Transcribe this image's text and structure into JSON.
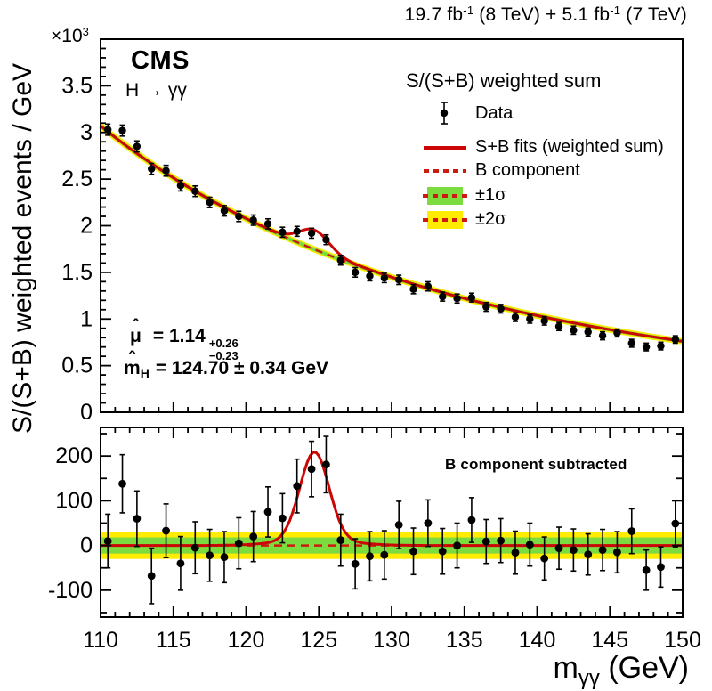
{
  "header": {
    "p1": "19.7 fb",
    "s1": "-1",
    "p2": " (8 TeV) + 5.1 fb",
    "s2": "-1",
    "p3": " (7 TeV)"
  },
  "pow_note": {
    "p1": "×10",
    "s1": "3"
  },
  "branding": {
    "experiment": "CMS",
    "channel": "H → γγ"
  },
  "legend": {
    "title": "S/(S+B) weighted sum",
    "data_label": "Data",
    "sb_label": "S+B fits (weighted sum)",
    "b_label": "B component",
    "s1_label": "±1σ",
    "s2_label": "±2σ"
  },
  "annotations": {
    "hat": "ˆ",
    "mu_symbol": "μ",
    "mu_eq": "= 1.14",
    "mu_up": "+0.26",
    "mu_dn": "−0.23",
    "mh_m": "m",
    "mh_sub": "H",
    "mh_eq": "= 124.70 ± 0.34 GeV"
  },
  "lower_panel_label": "B component subtracted",
  "xlabel": {
    "m": "m",
    "sub": "γγ",
    "unit": " (GeV)"
  },
  "ylabel": "S/(S+B) weighted events / GeV",
  "chart_data": {
    "type": "composite",
    "title": "S/(S+B) weighted sum",
    "xlabel": "m_γγ (GeV)",
    "ylabel": "S/(S+B) weighted events / GeV (×10³)",
    "x": {
      "min": 110,
      "max": 150,
      "major_ticks": [
        110,
        115,
        120,
        125,
        130,
        135,
        140,
        145,
        150
      ],
      "tick_labels": [
        "110",
        "115",
        "120",
        "125",
        "130",
        "135",
        "140",
        "145",
        "150"
      ],
      "minor_step": 1
    },
    "bin_start": 110.5,
    "bin_step": 1,
    "upper": {
      "name": "S/(S+B) weighted sum",
      "ylim": [
        0,
        4.0
      ],
      "major_ticks": [
        0,
        0.5,
        1,
        1.5,
        2,
        2.5,
        3,
        3.5
      ],
      "tick_labels": [
        "0",
        "0.5",
        "1",
        "1.5",
        "2",
        "2.5",
        "3",
        "3.5"
      ],
      "minor_step": 0.1,
      "unit_scale": "×10³",
      "data": [
        3.03,
        3.02,
        2.85,
        2.61,
        2.59,
        2.43,
        2.37,
        2.25,
        2.16,
        2.1,
        2.06,
        2.02,
        1.93,
        1.94,
        1.92,
        1.85,
        1.63,
        1.5,
        1.46,
        1.44,
        1.42,
        1.32,
        1.35,
        1.24,
        1.22,
        1.23,
        1.13,
        1.11,
        1.02,
        1.0,
        0.98,
        0.92,
        0.88,
        0.86,
        0.82,
        0.85,
        0.74,
        0.7,
        0.71,
        0.78
      ],
      "errors": [
        0.06,
        0.059,
        0.059,
        0.058,
        0.058,
        0.057,
        0.057,
        0.056,
        0.056,
        0.055,
        0.055,
        0.054,
        0.054,
        0.053,
        0.053,
        0.052,
        0.052,
        0.051,
        0.051,
        0.05,
        0.05,
        0.049,
        0.049,
        0.048,
        0.048,
        0.047,
        0.047,
        0.046,
        0.046,
        0.045,
        0.045,
        0.044,
        0.044,
        0.043,
        0.043,
        0.042,
        0.042,
        0.041,
        0.041,
        0.04
      ],
      "fit": {
        "b_norm": 3.07,
        "b_power": 4.5,
        "sig_amp": 197,
        "sig_mean": 124.7,
        "sig_sigma": 1.0,
        "sig_tail_amp": 12,
        "sig_tail_sigma": 2.5
      }
    },
    "lower": {
      "name": "B component subtracted",
      "ylim": [
        -160,
        264
      ],
      "major_ticks": [
        -100,
        0,
        100,
        200
      ],
      "tick_labels": [
        "-100",
        "0",
        "100",
        "200"
      ],
      "minor_step": 50,
      "data": [
        10,
        138,
        60,
        -68,
        33,
        -40,
        -5,
        -22,
        -26,
        5,
        20,
        75,
        61,
        133,
        171,
        181,
        12,
        -41,
        -24,
        -21,
        46,
        -13,
        50,
        -13,
        0,
        57,
        9,
        11,
        -16,
        2,
        -29,
        -6,
        -10,
        -20,
        -10,
        -15,
        32,
        -55,
        -48,
        49
      ],
      "errors": [
        60,
        65,
        62,
        62,
        60,
        60,
        58,
        58,
        57,
        57,
        56,
        56,
        55,
        60,
        62,
        63,
        58,
        56,
        55,
        54,
        53,
        52,
        52,
        51,
        50,
        50,
        49,
        49,
        48,
        48,
        48,
        47,
        47,
        46,
        46,
        46,
        50,
        45,
        45,
        52
      ],
      "bands": {
        "one_sigma": 18,
        "two_sigma": 30
      }
    },
    "colors": {
      "fit_line": "#cc0605",
      "b_line": "#cc1a10",
      "band_1sigma": "#7cdb3f",
      "band_2sigma": "#ffec00",
      "marker": "#000000"
    }
  }
}
